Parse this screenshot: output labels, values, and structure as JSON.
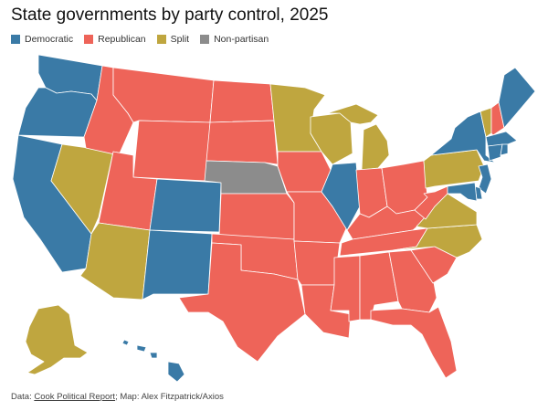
{
  "title": "State governments by party control, 2025",
  "legend": [
    {
      "label": "Democratic",
      "color": "#3a7aa6"
    },
    {
      "label": "Republican",
      "color": "#ee6459"
    },
    {
      "label": "Split",
      "color": "#bfa63f"
    },
    {
      "label": "Non-partisan",
      "color": "#8c8c8c"
    }
  ],
  "colors": {
    "Democratic": "#3a7aa6",
    "Republican": "#ee6459",
    "Split": "#bfa63f",
    "Non-partisan": "#8c8c8c"
  },
  "states": {
    "WA": "Democratic",
    "OR": "Democratic",
    "CA": "Democratic",
    "NV": "Split",
    "ID": "Republican",
    "MT": "Republican",
    "WY": "Republican",
    "UT": "Republican",
    "AZ": "Split",
    "CO": "Democratic",
    "NM": "Democratic",
    "ND": "Republican",
    "SD": "Republican",
    "NE": "Non-partisan",
    "KS": "Republican",
    "OK": "Republican",
    "TX": "Republican",
    "MN": "Split",
    "IA": "Republican",
    "MO": "Republican",
    "AR": "Republican",
    "LA": "Republican",
    "WI": "Split",
    "IL": "Democratic",
    "MI": "Split",
    "IN": "Republican",
    "OH": "Republican",
    "KY": "Republican",
    "TN": "Republican",
    "MS": "Republican",
    "AL": "Republican",
    "GA": "Republican",
    "FL": "Republican",
    "SC": "Republican",
    "NC": "Split",
    "VA": "Split",
    "WV": "Republican",
    "PA": "Split",
    "NY": "Democratic",
    "VT": "Split",
    "NH": "Republican",
    "ME": "Democratic",
    "MA": "Democratic",
    "RI": "Democratic",
    "CT": "Democratic",
    "NJ": "Democratic",
    "DE": "Democratic",
    "MD": "Democratic",
    "AK": "Split",
    "HI": "Democratic"
  },
  "footer": {
    "prefix": "Data: ",
    "source": "Cook Political Report",
    "suffix": "; Map: Alex Fitzpatrick/Axios"
  }
}
